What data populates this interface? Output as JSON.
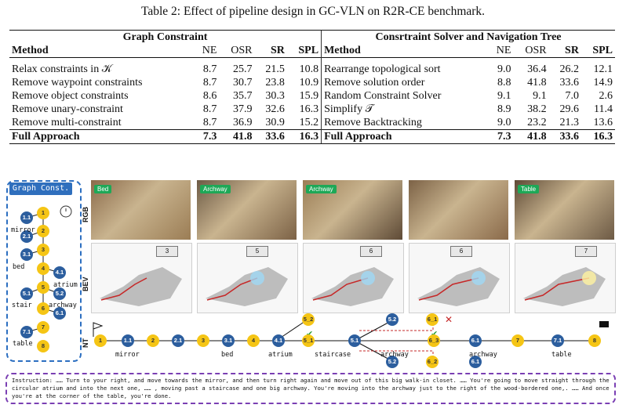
{
  "caption": "Table 2: Effect of pipeline design in GC-VLN on R2R-CE benchmark.",
  "table": {
    "left_group": "Graph Constraint",
    "right_group": "Consrtraint Solver and Navigation Tree",
    "headers": [
      "Method",
      "NE",
      "OSR",
      "SR",
      "SPL"
    ],
    "left_rows": [
      [
        "Relax constraints in 𝒦",
        "8.7",
        "25.7",
        "21.5",
        "10.8"
      ],
      [
        "Remove waypoint constraints",
        "8.7",
        "30.7",
        "23.8",
        "10.9"
      ],
      [
        "Remove object constraints",
        "8.6",
        "35.7",
        "30.3",
        "15.9"
      ],
      [
        "Remove unary-constraint",
        "8.7",
        "37.9",
        "32.6",
        "16.3"
      ],
      [
        "Remove multi-constraint",
        "8.7",
        "36.9",
        "30.9",
        "15.2"
      ]
    ],
    "right_rows": [
      [
        "Rearrange topological sort",
        "9.0",
        "36.4",
        "26.2",
        "12.1"
      ],
      [
        "Remove solution order",
        "8.8",
        "41.8",
        "33.6",
        "14.9"
      ],
      [
        "Random Constraint Solver",
        "9.1",
        "9.1",
        "7.0",
        "2.6"
      ],
      [
        "Simplify 𝒯",
        "8.9",
        "38.2",
        "29.6",
        "11.4"
      ],
      [
        "Remove Backtracking",
        "9.0",
        "23.2",
        "21.3",
        "13.6"
      ]
    ],
    "full_left": [
      "Full Approach",
      "7.3",
      "41.8",
      "33.6",
      "16.3"
    ],
    "full_right": [
      "Full Approach",
      "7.3",
      "41.8",
      "33.6",
      "16.3"
    ]
  },
  "figure": {
    "gc_title": "Graph Const.",
    "gc_nodes": [
      "1",
      "1.1",
      "2",
      "2.1",
      "3",
      "3.1",
      "4",
      "4.1",
      "5",
      "5.1",
      "5.2",
      "6",
      "6.1",
      "7",
      "7.1",
      "8"
    ],
    "gc_labels": [
      "mirror",
      "bed",
      "atrium",
      "stair",
      "archway",
      "table"
    ],
    "row_labels": [
      "RGB",
      "BEV",
      "NT"
    ],
    "rgb_tags": [
      "Bed",
      "Archway",
      "Archway",
      "",
      "Table"
    ],
    "bev_steps": [
      "3",
      "5",
      "6",
      "6",
      "7"
    ],
    "nt_nodes": [
      "1",
      "1.1",
      "2",
      "2.1",
      "3",
      "3.1",
      "4",
      "4.1",
      "5_1",
      "5_2",
      "5.1",
      "5.2",
      "6_1",
      "6_3",
      "5.2",
      "6_2",
      "6.1",
      "6.1",
      "7",
      "7.1",
      "8"
    ],
    "nt_labels": [
      "mirror",
      "bed",
      "atrium",
      "staircase",
      "archway",
      "archway",
      "table"
    ],
    "instruction": "Instruction: …… Turn to your right, and move towards the mirror, and then turn right again and move out of this big walk-in closet. …… You're going to move straight through the circular atrium and into the next one, …… , moving past a staircase and one big archway. You're moving into the archway just to the right of the wood-bordered one,. …… And once you're at the corner of the table, you're done."
  }
}
